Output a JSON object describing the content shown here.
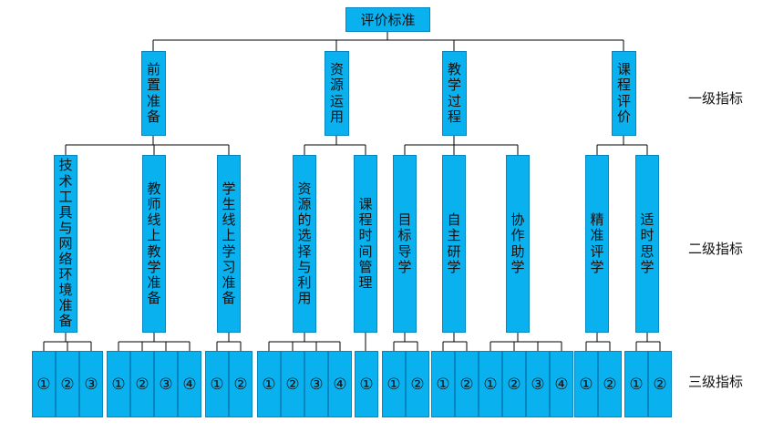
{
  "root": {
    "label": "评价标准"
  },
  "level1": [
    {
      "label": "前置准备",
      "children": [
        {
          "label": "技术工具与网络环境准备",
          "items": [
            "①",
            "②",
            "③"
          ]
        },
        {
          "label": "教师线上教学准备",
          "items": [
            "①",
            "②",
            "③",
            "④"
          ]
        },
        {
          "label": "学生线上学习准备",
          "items": [
            "①",
            "②"
          ]
        }
      ]
    },
    {
      "label": "资源运用",
      "children": [
        {
          "label": "资源的选择与利用",
          "items": [
            "①",
            "②",
            "③",
            "④"
          ]
        },
        {
          "label": "课程时间管理",
          "items": [
            "①"
          ]
        }
      ]
    },
    {
      "label": "教学过程",
      "children": [
        {
          "label": "目标导学",
          "items": [
            "①",
            "②"
          ]
        },
        {
          "label": "自主研学",
          "items": [
            "①",
            "②"
          ]
        },
        {
          "label": "协作助学",
          "items": [
            "①",
            "②",
            "③",
            "④"
          ]
        }
      ]
    },
    {
      "label": "课程评价",
      "children": [
        {
          "label": "精准评学",
          "items": [
            "①",
            "②"
          ]
        },
        {
          "label": "适时思学",
          "items": [
            "①",
            "②"
          ]
        }
      ]
    }
  ],
  "level_labels": {
    "level1": "一级指标",
    "level2": "二级指标",
    "level3": "三级指标"
  },
  "colors": {
    "box": "#0ab1ef",
    "box_border": "#0686c0",
    "line": "#000000"
  }
}
